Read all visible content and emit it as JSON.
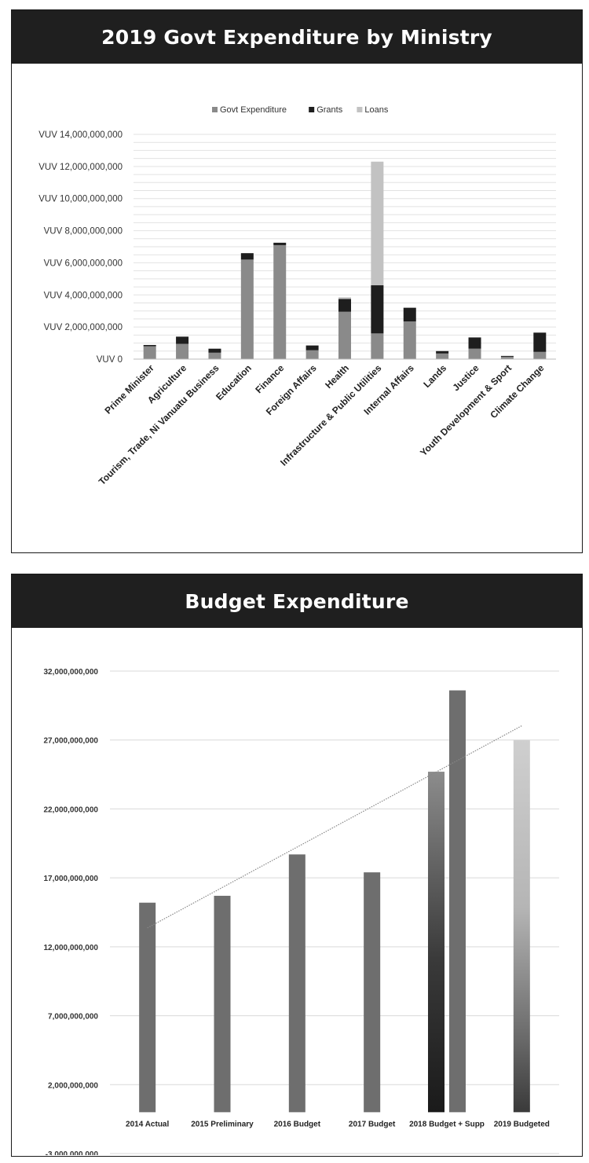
{
  "chart_data": [
    {
      "type": "bar",
      "stacked": true,
      "title": "2019 Govt Expenditure by Ministry",
      "xlabel": "",
      "ylabel": "",
      "ylim": [
        0,
        14000000000
      ],
      "y_ticks": [
        "VUV 14,000,000,000",
        "VUV 12,000,000,000",
        "VUV 10,000,000,000",
        "VUV 8,000,000,000",
        "VUV 6,000,000,000",
        "VUV 4,000,000,000",
        "VUV 2,000,000,000",
        "VUV 0"
      ],
      "y_tick_values": [
        14000000000,
        12000000000,
        10000000000,
        8000000000,
        6000000000,
        4000000000,
        2000000000,
        0
      ],
      "legend_position": "top",
      "grid": true,
      "categories": [
        "Prime Minister",
        "Agriculture",
        "Tourism, Trade, Ni Vanuatu Business",
        "Education",
        "Finance",
        "Foreign Affairs",
        "Health",
        "Infrastructure & Public Utilities",
        "Internal Affairs",
        "Lands",
        "Justice",
        "Youth Development & Sport",
        "Climate Change"
      ],
      "series": [
        {
          "name": "Govt Expenditure",
          "color": "#8a8a8a",
          "values": [
            800000000,
            950000000,
            400000000,
            6200000000,
            7100000000,
            550000000,
            2950000000,
            1600000000,
            2350000000,
            350000000,
            650000000,
            150000000,
            450000000
          ]
        },
        {
          "name": "Grants",
          "color": "#1e1e1e",
          "values": [
            80000000,
            450000000,
            250000000,
            400000000,
            150000000,
            300000000,
            800000000,
            3000000000,
            850000000,
            150000000,
            700000000,
            50000000,
            1200000000
          ]
        },
        {
          "name": "Loans",
          "color": "#c2c2c2",
          "values": [
            0,
            0,
            0,
            0,
            0,
            0,
            100000000,
            7700000000,
            0,
            0,
            0,
            0,
            0
          ]
        }
      ]
    },
    {
      "type": "bar",
      "title": "Budget Expenditure",
      "xlabel": "",
      "ylabel": "",
      "ylim": [
        -3000000000,
        32000000000
      ],
      "y_ticks": [
        "32,000,000,000",
        "27,000,000,000",
        "22,000,000,000",
        "17,000,000,000",
        "12,000,000,000",
        "7,000,000,000",
        "2,000,000,000",
        "-3,000,000,000"
      ],
      "y_tick_values": [
        32000000000,
        27000000000,
        22000000000,
        17000000000,
        12000000000,
        7000000000,
        2000000000,
        -3000000000
      ],
      "grid": true,
      "trendline": "linear",
      "categories": [
        "2014 Actual",
        "2015 Preliminary",
        "2016 Budget",
        "2017 Budget",
        "2018 Budget + Supp",
        "2019 Budgeted"
      ],
      "bars": [
        {
          "category_index": 0,
          "value": 15200000000,
          "fill": "solid"
        },
        {
          "category_index": 1,
          "value": 15700000000,
          "fill": "solid"
        },
        {
          "category_index": 2,
          "value": 18700000000,
          "fill": "solid"
        },
        {
          "category_index": 3,
          "value": 17400000000,
          "fill": "solid"
        },
        {
          "category_index": 4,
          "value": 24700000000,
          "fill": "gradient-dark"
        },
        {
          "category_index": 4,
          "value": 30600000000,
          "fill": "solid"
        },
        {
          "category_index": 5,
          "value": 27000000000,
          "fill": "gradient-light"
        }
      ]
    }
  ],
  "colors": {
    "bar_solid": "#6e6e6e",
    "header_bg": "#1f1f1f",
    "trendline": "#888888",
    "grid": "#d9d9d9"
  }
}
